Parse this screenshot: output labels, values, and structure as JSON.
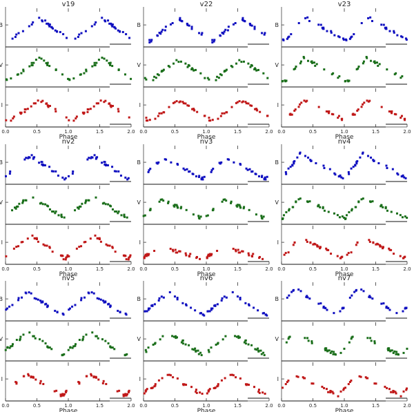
{
  "figure": {
    "x_label": "Phase",
    "band_labels": [
      "B",
      "V",
      "I"
    ],
    "band_colors": [
      "#1010c0",
      "#1a6e1a",
      "#c01818"
    ]
  },
  "chart_data": [
    {
      "type": "scatter",
      "title": "v19",
      "xlim": [
        0,
        2
      ],
      "xticks": [
        "0.0",
        "0.5",
        "1.0",
        "1.5",
        "2.0"
      ],
      "xlabel": "Phase",
      "peak_phase": 0.55,
      "rise_fraction": 0.5,
      "amplitude": [
        0.6,
        0.6,
        0.55
      ],
      "n_points": 26
    },
    {
      "type": "scatter",
      "title": "v22",
      "xlim": [
        0,
        2
      ],
      "xticks": [
        "0.0",
        "0.5",
        "1.0",
        "1.5",
        "2.0"
      ],
      "xlabel": "Phase",
      "peak_phase": 0.55,
      "rise_fraction": 0.45,
      "amplitude": [
        0.6,
        0.55,
        0.55
      ],
      "n_points": 28
    },
    {
      "type": "scatter",
      "title": "v23",
      "xlim": [
        0,
        2
      ],
      "xticks": [
        "0.0",
        "0.5",
        "1.0",
        "1.5",
        "2.0"
      ],
      "xlabel": "Phase",
      "peak_phase": 0.35,
      "rise_fraction": 0.3,
      "amplitude": [
        0.65,
        0.6,
        0.55
      ],
      "n_points": 24
    },
    {
      "type": "scatter",
      "title": "nv2",
      "xlim": [
        0,
        2
      ],
      "xticks": [
        "0.0",
        "0.5",
        "1.0",
        "1.5",
        "2.0"
      ],
      "xlabel": "Phase",
      "peak_phase": 0.4,
      "rise_fraction": 0.45,
      "amplitude": [
        0.6,
        0.6,
        0.6
      ],
      "n_points": 28
    },
    {
      "type": "scatter",
      "title": "nv3",
      "xlim": [
        0,
        2
      ],
      "xticks": [
        "0.0",
        "0.5",
        "1.0",
        "1.5",
        "2.0"
      ],
      "xlabel": "Phase",
      "peak_phase": 0.3,
      "rise_fraction": 0.35,
      "amplitude": [
        0.55,
        0.5,
        0.3
      ],
      "n_points": 26
    },
    {
      "type": "scatter",
      "title": "nv4",
      "xlim": [
        0,
        2
      ],
      "xticks": [
        "0.0",
        "0.5",
        "1.0",
        "1.5",
        "2.0"
      ],
      "xlabel": "Phase",
      "peak_phase": 0.3,
      "rise_fraction": 0.3,
      "amplitude": [
        0.65,
        0.55,
        0.55
      ],
      "n_points": 28
    },
    {
      "type": "scatter",
      "title": "nv5",
      "xlim": [
        0,
        2
      ],
      "xticks": [
        "0.0",
        "0.5",
        "1.0",
        "1.5",
        "2.0"
      ],
      "xlabel": "Phase",
      "peak_phase": 0.35,
      "rise_fraction": 0.45,
      "amplitude": [
        0.6,
        0.6,
        0.55
      ],
      "n_points": 28
    },
    {
      "type": "scatter",
      "title": "nv6",
      "xlim": [
        0,
        2
      ],
      "xticks": [
        "0.0",
        "0.5",
        "1.0",
        "1.5",
        "2.0"
      ],
      "xlabel": "Phase",
      "peak_phase": 0.4,
      "rise_fraction": 0.45,
      "amplitude": [
        0.6,
        0.6,
        0.55
      ],
      "n_points": 28
    },
    {
      "type": "scatter",
      "title": "nv7",
      "xlim": [
        0,
        2
      ],
      "xticks": [
        "0.0",
        "0.5",
        "1.0",
        "1.5",
        "2.0"
      ],
      "xlabel": "Phase",
      "peak_phase": 0.2,
      "rise_fraction": 0.3,
      "amplitude": [
        0.7,
        0.6,
        0.55
      ],
      "n_points": 24
    }
  ]
}
